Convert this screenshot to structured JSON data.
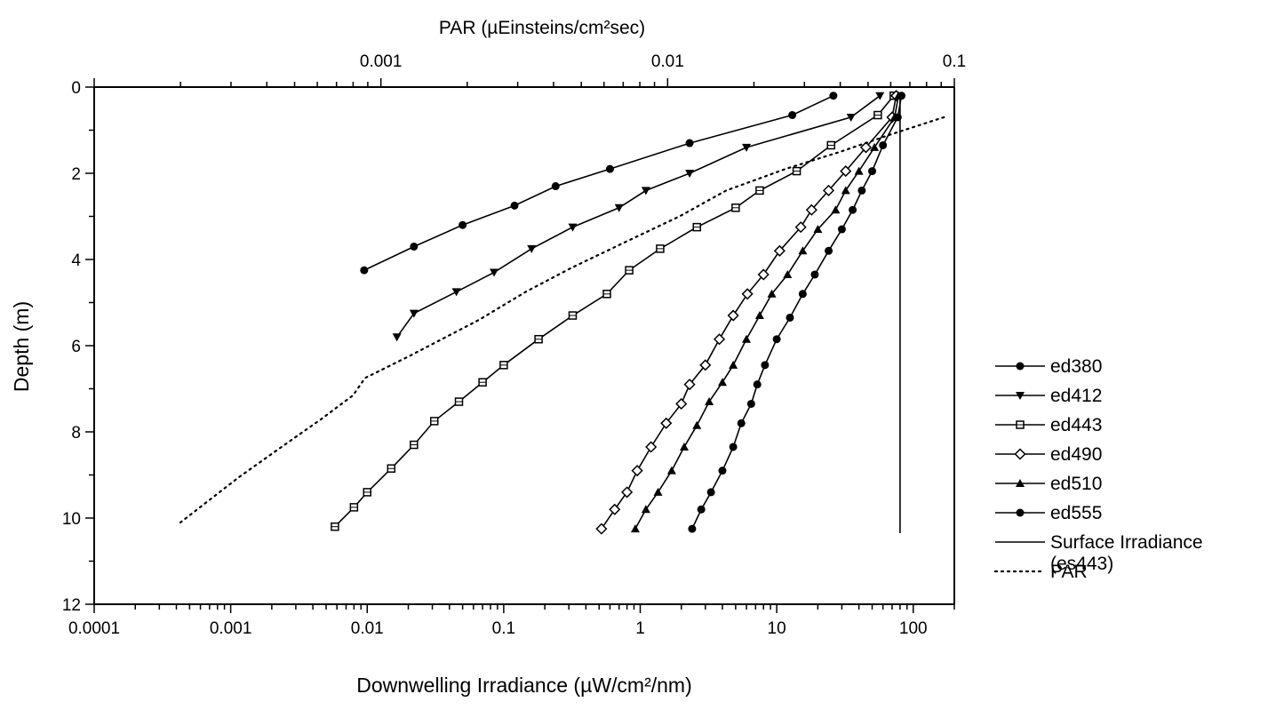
{
  "chart_data": {
    "type": "line",
    "title": "",
    "xlabel": "Downwelling Irradiance (µW/cm²/nm)",
    "x2label": "PAR (µEinsteins/cm²sec)",
    "ylabel": "Depth (m)",
    "x_scale": "log",
    "x2_scale": "log",
    "xlim": [
      0.0001,
      200
    ],
    "x2lim": [
      0.0001,
      0.1
    ],
    "ylim": [
      0,
      12
    ],
    "y_inverted": true,
    "x_tick_labels": [
      "0.0001",
      "0.001",
      "0.01",
      "0.1",
      "1",
      "10",
      "100"
    ],
    "x_tick_values": [
      0.0001,
      0.001,
      0.01,
      0.1,
      1,
      10,
      100
    ],
    "x2_tick_labels": [
      "0.001",
      "0.01",
      "0.1"
    ],
    "x2_tick_values": [
      0.001,
      0.01,
      0.1
    ],
    "y_tick_labels": [
      "0",
      "2",
      "4",
      "6",
      "8",
      "10",
      "12"
    ],
    "y_tick_values": [
      0,
      2,
      4,
      6,
      8,
      10,
      12
    ],
    "grid": false,
    "legend_position": "right",
    "series": [
      {
        "name": "ed380",
        "marker": "circle",
        "axis": "bottom",
        "points": [
          [
            26,
            0.2
          ],
          [
            13,
            0.65
          ],
          [
            2.3,
            1.3
          ],
          [
            0.6,
            1.9
          ],
          [
            0.24,
            2.3
          ],
          [
            0.12,
            2.75
          ],
          [
            0.05,
            3.2
          ],
          [
            0.022,
            3.7
          ],
          [
            0.0095,
            4.25
          ]
        ]
      },
      {
        "name": "ed412",
        "marker": "triangle-down",
        "axis": "bottom",
        "points": [
          [
            57,
            0.2
          ],
          [
            35,
            0.7
          ],
          [
            6,
            1.4
          ],
          [
            2.3,
            2
          ],
          [
            1.1,
            2.4
          ],
          [
            0.7,
            2.8
          ],
          [
            0.32,
            3.25
          ],
          [
            0.16,
            3.75
          ],
          [
            0.085,
            4.3
          ],
          [
            0.045,
            4.75
          ],
          [
            0.022,
            5.25
          ],
          [
            0.0165,
            5.8
          ]
        ]
      },
      {
        "name": "ed443",
        "marker": "square",
        "axis": "bottom",
        "points": [
          [
            72,
            0.2
          ],
          [
            55,
            0.65
          ],
          [
            25,
            1.35
          ],
          [
            14,
            1.95
          ],
          [
            7.5,
            2.4
          ],
          [
            5,
            2.8
          ],
          [
            2.6,
            3.25
          ],
          [
            1.4,
            3.75
          ],
          [
            0.83,
            4.25
          ],
          [
            0.57,
            4.8
          ],
          [
            0.32,
            5.3
          ],
          [
            0.18,
            5.85
          ],
          [
            0.1,
            6.45
          ],
          [
            0.07,
            6.85
          ],
          [
            0.047,
            7.3
          ],
          [
            0.031,
            7.75
          ],
          [
            0.022,
            8.3
          ],
          [
            0.015,
            8.85
          ],
          [
            0.01,
            9.4
          ],
          [
            0.008,
            9.75
          ],
          [
            0.0058,
            10.2
          ]
        ]
      },
      {
        "name": "ed490",
        "marker": "diamond",
        "axis": "bottom",
        "points": [
          [
            75,
            0.2
          ],
          [
            70,
            0.7
          ],
          [
            45,
            1.4
          ],
          [
            32,
            1.95
          ],
          [
            24,
            2.4
          ],
          [
            18,
            2.85
          ],
          [
            15,
            3.25
          ],
          [
            10.5,
            3.8
          ],
          [
            8,
            4.35
          ],
          [
            6.1,
            4.8
          ],
          [
            4.8,
            5.3
          ],
          [
            3.8,
            5.85
          ],
          [
            3,
            6.45
          ],
          [
            2.3,
            6.9
          ],
          [
            2,
            7.35
          ],
          [
            1.55,
            7.8
          ],
          [
            1.2,
            8.35
          ],
          [
            0.95,
            8.9
          ],
          [
            0.8,
            9.4
          ],
          [
            0.65,
            9.8
          ],
          [
            0.52,
            10.25
          ]
        ]
      },
      {
        "name": "ed510",
        "marker": "triangle-up",
        "axis": "bottom",
        "points": [
          [
            78,
            0.2
          ],
          [
            73,
            0.7
          ],
          [
            52,
            1.4
          ],
          [
            40,
            1.95
          ],
          [
            32,
            2.4
          ],
          [
            27,
            2.85
          ],
          [
            20,
            3.3
          ],
          [
            15.5,
            3.8
          ],
          [
            12,
            4.35
          ],
          [
            9.2,
            4.8
          ],
          [
            7.5,
            5.3
          ],
          [
            6,
            5.85
          ],
          [
            4.8,
            6.45
          ],
          [
            4,
            6.85
          ],
          [
            3.2,
            7.3
          ],
          [
            2.6,
            7.85
          ],
          [
            2.1,
            8.35
          ],
          [
            1.7,
            8.9
          ],
          [
            1.35,
            9.4
          ],
          [
            1.1,
            9.8
          ],
          [
            0.92,
            10.25
          ]
        ]
      },
      {
        "name": "ed555",
        "marker": "circle",
        "axis": "bottom",
        "points": [
          [
            82,
            0.2
          ],
          [
            77,
            0.7
          ],
          [
            60,
            1.35
          ],
          [
            50,
            1.95
          ],
          [
            42,
            2.4
          ],
          [
            36,
            2.85
          ],
          [
            30,
            3.3
          ],
          [
            24,
            3.8
          ],
          [
            19,
            4.35
          ],
          [
            15.5,
            4.8
          ],
          [
            12.5,
            5.35
          ],
          [
            10,
            5.85
          ],
          [
            8.2,
            6.45
          ],
          [
            7.2,
            6.9
          ],
          [
            6.5,
            7.35
          ],
          [
            5.5,
            7.8
          ],
          [
            4.8,
            8.35
          ],
          [
            4,
            8.9
          ],
          [
            3.3,
            9.4
          ],
          [
            2.8,
            9.8
          ],
          [
            2.4,
            10.25
          ]
        ]
      },
      {
        "name": "Surface Irradiance\n(es443)",
        "marker": "none",
        "style": "solid",
        "axis": "bottom",
        "points": [
          [
            80,
            0.2
          ],
          [
            80,
            10.35
          ]
        ]
      },
      {
        "name": "PAR",
        "marker": "none",
        "style": "dotted",
        "axis": "top",
        "points": [
          [
            0.092,
            0.7
          ],
          [
            0.06,
            1.1
          ],
          [
            0.04,
            1.5
          ],
          [
            0.0258,
            1.9
          ],
          [
            0.016,
            2.4
          ],
          [
            0.011,
            3.0
          ],
          [
            0.0071,
            3.6
          ],
          [
            0.0046,
            4.2
          ],
          [
            0.0032,
            4.75
          ],
          [
            0.0022,
            5.4
          ],
          [
            0.00125,
            6.25
          ],
          [
            0.00088,
            6.75
          ],
          [
            0.0008,
            7.15
          ],
          [
            0.00062,
            7.7
          ],
          [
            0.00045,
            8.35
          ],
          [
            0.00032,
            9.05
          ],
          [
            0.0002,
            10.1
          ]
        ]
      }
    ]
  }
}
